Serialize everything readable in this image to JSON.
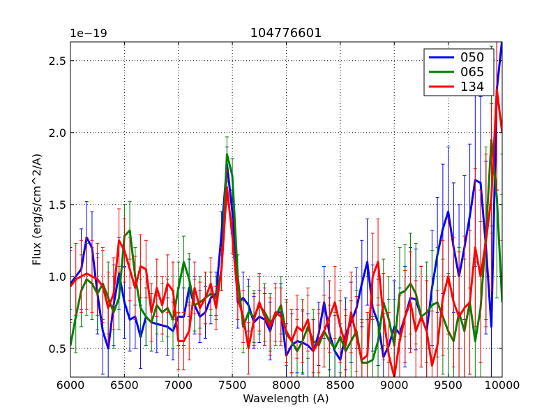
{
  "chart_data": {
    "type": "line",
    "title": "104776601",
    "xlabel": "Wavelength (A)",
    "ylabel": "Flux (erg/s/cm^2/A)",
    "y_offset_label": "1e−19",
    "xlim": [
      6000,
      10000
    ],
    "ylim": [
      0.3,
      2.63
    ],
    "xticks": [
      6000,
      6500,
      7000,
      7500,
      8000,
      8500,
      9000,
      9500,
      10000
    ],
    "xtick_labels": [
      "6000",
      "6500",
      "7000",
      "7500",
      "8000",
      "8500",
      "9000",
      "9500",
      "10000"
    ],
    "yticks": [
      0.5,
      1.0,
      1.5,
      2.0,
      2.5
    ],
    "ytick_labels": [
      "0.5",
      "1.0",
      "1.5",
      "2.0",
      "2.5"
    ],
    "grid": true,
    "legend_position": "top-right",
    "series": [
      {
        "name": "050",
        "color": "#0000ff",
        "x": [
          6000,
          6100,
          6150,
          6200,
          6250,
          6300,
          6350,
          6400,
          6450,
          6500,
          6550,
          6600,
          6650,
          6700,
          6750,
          6800,
          6900,
          6950,
          7000,
          7050,
          7100,
          7150,
          7200,
          7250,
          7300,
          7350,
          7400,
          7450,
          7500,
          7550,
          7600,
          7650,
          7700,
          7750,
          7800,
          7850,
          7900,
          7950,
          8000,
          8050,
          8100,
          8150,
          8200,
          8250,
          8300,
          8350,
          8400,
          8450,
          8500,
          8550,
          8600,
          8650,
          8700,
          8750,
          8800,
          8850,
          8900,
          8950,
          9000,
          9050,
          9100,
          9150,
          9200,
          9250,
          9300,
          9350,
          9400,
          9450,
          9500,
          9550,
          9600,
          9650,
          9700,
          9750,
          9800,
          9850,
          9900,
          9950,
          10000
        ],
        "values": [
          0.95,
          1.05,
          1.27,
          1.2,
          0.88,
          0.62,
          0.5,
          0.8,
          1.02,
          0.82,
          0.7,
          0.72,
          0.58,
          0.72,
          0.68,
          0.67,
          0.65,
          0.62,
          0.72,
          0.72,
          0.92,
          0.8,
          0.72,
          0.75,
          0.85,
          0.88,
          1.3,
          1.78,
          1.45,
          0.82,
          0.85,
          0.8,
          0.68,
          0.72,
          0.7,
          0.62,
          0.75,
          0.75,
          0.45,
          0.52,
          0.55,
          0.54,
          0.52,
          0.48,
          0.6,
          0.82,
          0.6,
          0.48,
          0.42,
          0.6,
          0.68,
          0.78,
          0.95,
          1.1,
          0.78,
          0.68,
          0.44,
          0.52,
          0.65,
          0.6,
          0.72,
          0.85,
          0.84,
          0.72,
          0.62,
          0.92,
          1.15,
          1.33,
          1.45,
          1.2,
          1.0,
          1.2,
          1.42,
          1.67,
          1.65,
          1.2,
          0.65,
          2.3,
          2.65
        ],
        "errors": [
          0.25,
          0.28,
          0.25,
          0.25,
          0.28,
          0.3,
          0.3,
          0.28,
          0.25,
          0.25,
          0.22,
          0.22,
          0.22,
          0.2,
          0.2,
          0.2,
          0.2,
          0.2,
          0.2,
          0.2,
          0.2,
          0.2,
          0.18,
          0.18,
          0.18,
          0.15,
          0.15,
          0.12,
          0.15,
          0.18,
          0.18,
          0.18,
          0.18,
          0.18,
          0.18,
          0.2,
          0.2,
          0.2,
          0.22,
          0.22,
          0.22,
          0.22,
          0.22,
          0.22,
          0.22,
          0.25,
          0.25,
          0.25,
          0.25,
          0.25,
          0.28,
          0.28,
          0.3,
          0.3,
          0.3,
          0.3,
          0.3,
          0.32,
          0.32,
          0.32,
          0.35,
          0.35,
          0.35,
          0.35,
          0.35,
          0.4,
          0.4,
          0.45,
          0.45,
          0.45,
          0.5,
          0.5,
          0.5,
          0.6,
          0.6,
          0.6,
          0.7,
          0.7,
          0.8
        ]
      },
      {
        "name": "065",
        "color": "#008000",
        "x": [
          6000,
          6050,
          6100,
          6150,
          6200,
          6250,
          6300,
          6350,
          6400,
          6450,
          6500,
          6550,
          6600,
          6650,
          6700,
          6750,
          6800,
          6850,
          6900,
          6950,
          7000,
          7050,
          7100,
          7150,
          7200,
          7250,
          7300,
          7350,
          7400,
          7450,
          7500,
          7550,
          7600,
          7650,
          7700,
          7750,
          7800,
          7850,
          7900,
          7950,
          8000,
          8050,
          8100,
          8150,
          8200,
          8250,
          8300,
          8350,
          8400,
          8450,
          8500,
          8550,
          8600,
          8650,
          8700,
          8750,
          8800,
          8850,
          8900,
          8950,
          9000,
          9050,
          9100,
          9150,
          9200,
          9250,
          9300,
          9350,
          9400,
          9450,
          9500,
          9550,
          9600,
          9650,
          9700,
          9750,
          9800,
          9850,
          9900,
          9950,
          10000
        ],
        "values": [
          0.52,
          0.72,
          0.9,
          0.98,
          0.95,
          0.88,
          0.95,
          0.85,
          0.75,
          0.85,
          1.28,
          1.32,
          1.0,
          0.78,
          0.72,
          0.68,
          0.8,
          0.75,
          0.78,
          0.7,
          0.92,
          1.1,
          0.98,
          0.8,
          0.82,
          0.85,
          0.88,
          0.85,
          1.05,
          1.85,
          1.7,
          1.0,
          0.65,
          0.75,
          0.72,
          0.8,
          0.75,
          0.68,
          0.72,
          0.8,
          0.6,
          0.55,
          0.48,
          0.55,
          0.65,
          0.55,
          0.52,
          0.62,
          0.55,
          0.5,
          0.58,
          0.48,
          0.55,
          0.62,
          0.4,
          0.4,
          0.42,
          0.55,
          0.82,
          0.7,
          0.52,
          0.88,
          0.9,
          0.95,
          0.88,
          0.72,
          0.75,
          0.8,
          0.82,
          0.72,
          0.62,
          0.55,
          0.75,
          0.62,
          0.82,
          0.55,
          0.78,
          1.3,
          1.95,
          1.55,
          0.82
        ],
        "errors": [
          0.25,
          0.25,
          0.25,
          0.25,
          0.25,
          0.25,
          0.25,
          0.25,
          0.25,
          0.22,
          0.22,
          0.2,
          0.2,
          0.2,
          0.2,
          0.2,
          0.2,
          0.2,
          0.2,
          0.2,
          0.18,
          0.18,
          0.18,
          0.18,
          0.18,
          0.18,
          0.15,
          0.15,
          0.15,
          0.12,
          0.12,
          0.15,
          0.18,
          0.18,
          0.18,
          0.2,
          0.2,
          0.2,
          0.2,
          0.2,
          0.22,
          0.22,
          0.22,
          0.22,
          0.22,
          0.22,
          0.22,
          0.25,
          0.25,
          0.25,
          0.25,
          0.25,
          0.28,
          0.28,
          0.28,
          0.3,
          0.3,
          0.3,
          0.3,
          0.3,
          0.32,
          0.32,
          0.32,
          0.35,
          0.35,
          0.35,
          0.35,
          0.38,
          0.38,
          0.4,
          0.4,
          0.45,
          0.45,
          0.5,
          0.5,
          0.55,
          0.6,
          0.6,
          0.65,
          0.7,
          0.75
        ]
      },
      {
        "name": "134",
        "color": "#ff0000",
        "x": [
          6000,
          6050,
          6100,
          6150,
          6200,
          6250,
          6300,
          6350,
          6400,
          6450,
          6500,
          6550,
          6600,
          6650,
          6700,
          6750,
          6800,
          6850,
          6900,
          6950,
          7000,
          7050,
          7100,
          7150,
          7200,
          7250,
          7300,
          7350,
          7400,
          7450,
          7500,
          7550,
          7600,
          7650,
          7700,
          7750,
          7800,
          7850,
          7900,
          7950,
          8000,
          8050,
          8100,
          8150,
          8200,
          8250,
          8300,
          8350,
          8400,
          8450,
          8500,
          8550,
          8600,
          8650,
          8700,
          8750,
          8800,
          8850,
          8900,
          8950,
          9000,
          9050,
          9100,
          9150,
          9200,
          9250,
          9300,
          9350,
          9400,
          9450,
          9500,
          9550,
          9600,
          9650,
          9700,
          9750,
          9800,
          9850,
          9900,
          9950,
          10000
        ],
        "values": [
          0.93,
          0.98,
          1.0,
          1.02,
          1.0,
          0.98,
          0.93,
          0.78,
          0.88,
          1.25,
          1.18,
          1.05,
          0.92,
          1.07,
          1.05,
          0.75,
          0.92,
          0.8,
          0.95,
          0.9,
          0.55,
          0.55,
          0.62,
          0.92,
          0.78,
          0.85,
          0.95,
          0.78,
          1.05,
          1.62,
          1.28,
          0.85,
          0.72,
          0.5,
          0.7,
          0.82,
          0.72,
          0.65,
          0.75,
          0.72,
          0.62,
          0.55,
          0.65,
          0.62,
          0.7,
          0.48,
          0.55,
          0.62,
          0.72,
          0.82,
          0.65,
          0.52,
          0.75,
          0.58,
          0.42,
          0.45,
          1.0,
          1.1,
          0.72,
          0.45,
          0.3,
          0.55,
          0.72,
          0.82,
          0.62,
          0.72,
          0.62,
          0.38,
          0.52,
          0.85,
          1.0,
          0.82,
          0.72,
          0.78,
          0.82,
          1.2,
          1.0,
          1.25,
          1.55,
          2.3,
          2.0
        ],
        "errors": [
          0.25,
          0.25,
          0.25,
          0.25,
          0.25,
          0.25,
          0.25,
          0.25,
          0.25,
          0.22,
          0.22,
          0.22,
          0.22,
          0.22,
          0.2,
          0.2,
          0.2,
          0.2,
          0.2,
          0.2,
          0.2,
          0.2,
          0.2,
          0.18,
          0.18,
          0.18,
          0.18,
          0.15,
          0.15,
          0.12,
          0.12,
          0.15,
          0.18,
          0.18,
          0.18,
          0.2,
          0.2,
          0.2,
          0.2,
          0.2,
          0.22,
          0.22,
          0.22,
          0.22,
          0.22,
          0.22,
          0.22,
          0.25,
          0.25,
          0.25,
          0.25,
          0.25,
          0.28,
          0.28,
          0.28,
          0.3,
          0.3,
          0.3,
          0.3,
          0.3,
          0.32,
          0.32,
          0.32,
          0.35,
          0.35,
          0.35,
          0.35,
          0.38,
          0.38,
          0.4,
          0.4,
          0.45,
          0.45,
          0.5,
          0.5,
          0.55,
          0.6,
          0.6,
          0.65,
          0.7,
          0.75
        ]
      }
    ]
  }
}
